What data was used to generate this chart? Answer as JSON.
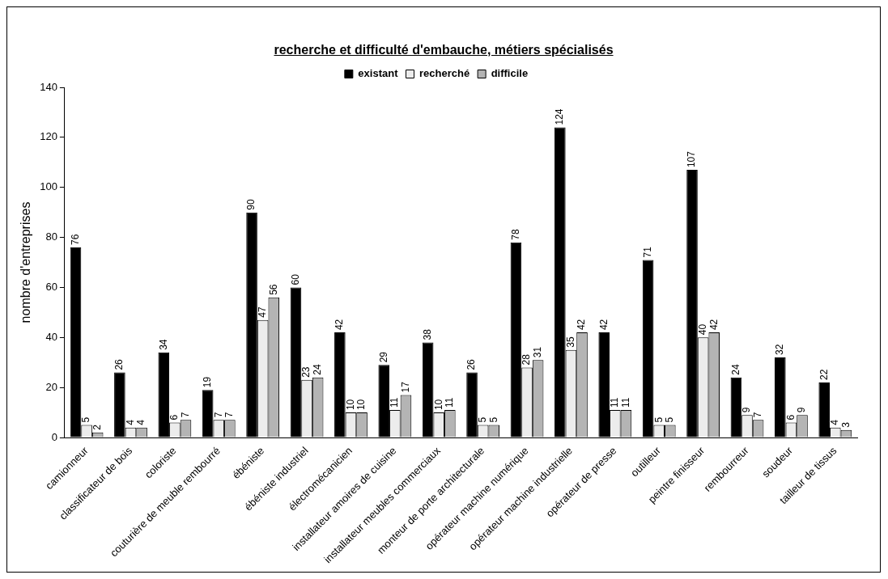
{
  "chart_data": {
    "type": "bar",
    "title": "recherche et difficulté d'embauche, métiers spécialisés",
    "ylabel": "nombre d'entreprises",
    "categories": [
      "camionneur",
      "classificateur de bois",
      "coloriste",
      "couturière de meuble rembourré",
      "ébéniste",
      "ébéniste industriel",
      "électromécanicien",
      "installateur amoires de cuisine",
      "installateur meubles commerciaux",
      "monteur de porte architecturale",
      "opérateur machine numérique",
      "opérateur machine industrielle",
      "opérateur de presse",
      "outilleur",
      "peintre finisseur",
      "rembourreur",
      "soudeur",
      "tailleur de tissus"
    ],
    "series": [
      {
        "name": "existant",
        "color": "#000000",
        "values": [
          76,
          26,
          34,
          19,
          90,
          60,
          42,
          29,
          38,
          26,
          78,
          124,
          42,
          71,
          107,
          24,
          32,
          22
        ]
      },
      {
        "name": "recherché",
        "color": "#ececec",
        "values": [
          5,
          4,
          6,
          7,
          47,
          23,
          10,
          11,
          10,
          5,
          28,
          35,
          11,
          5,
          40,
          9,
          6,
          4
        ]
      },
      {
        "name": "difficile",
        "color": "#b4b4b4",
        "values": [
          2,
          4,
          7,
          7,
          56,
          24,
          10,
          17,
          11,
          5,
          31,
          42,
          11,
          5,
          42,
          7,
          9,
          3
        ]
      }
    ],
    "ylim": [
      0,
      140
    ],
    "yticks": [
      0,
      20,
      40,
      60,
      80,
      100,
      120,
      140
    ],
    "grid": false,
    "legend": "top",
    "data_labels": true
  }
}
